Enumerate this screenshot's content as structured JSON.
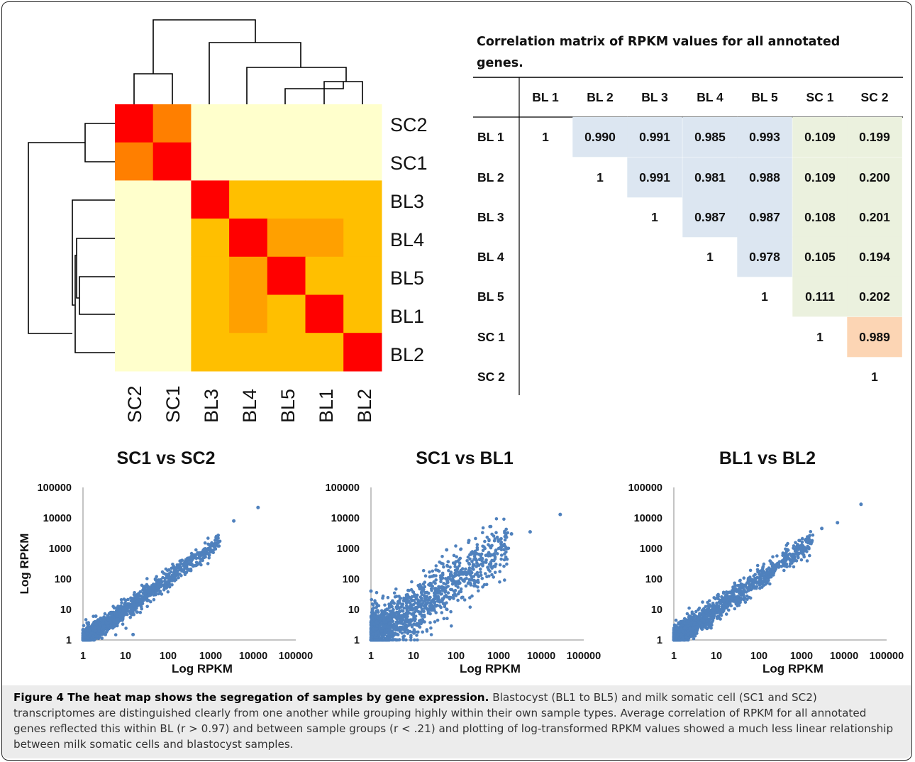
{
  "heatmap": {
    "rows": [
      "SC2",
      "SC1",
      "BL3",
      "BL4",
      "BL5",
      "BL1",
      "BL2"
    ],
    "cols": [
      "SC2",
      "SC1",
      "BL3",
      "BL4",
      "BL5",
      "BL1",
      "BL2"
    ],
    "colors": {
      "c1": "#ff0000",
      "c2": "#ff7f00",
      "c3": "#ffa000",
      "c4": "#ffbf00",
      "c5": "#ffffcc"
    },
    "cells": [
      [
        "c1",
        "c2",
        "c5",
        "c5",
        "c5",
        "c5",
        "c5"
      ],
      [
        "c2",
        "c1",
        "c5",
        "c5",
        "c5",
        "c5",
        "c5"
      ],
      [
        "c5",
        "c5",
        "c1",
        "c4",
        "c4",
        "c4",
        "c4"
      ],
      [
        "c5",
        "c5",
        "c4",
        "c1",
        "c3",
        "c3",
        "c4"
      ],
      [
        "c5",
        "c5",
        "c4",
        "c3",
        "c1",
        "c4",
        "c4"
      ],
      [
        "c5",
        "c5",
        "c4",
        "c3",
        "c4",
        "c1",
        "c4"
      ],
      [
        "c5",
        "c5",
        "c4",
        "c4",
        "c4",
        "c4",
        "c1"
      ]
    ]
  },
  "table": {
    "title_line1": "Correlation matrix of RPKM values for all annotated",
    "title_line2": "genes.",
    "headers": [
      "BL 1",
      "BL 2",
      "BL 3",
      "BL 4",
      "BL 5",
      "SC 1",
      "SC 2"
    ],
    "rows": [
      {
        "label": "BL 1",
        "cells": [
          "1",
          "0.990",
          "0.991",
          "0.985",
          "0.993",
          "0.109",
          "0.199"
        ]
      },
      {
        "label": "BL 2",
        "cells": [
          "",
          "1",
          "0.991",
          "0.981",
          "0.988",
          "0.109",
          "0.200"
        ]
      },
      {
        "label": "BL 3",
        "cells": [
          "",
          "",
          "1",
          "0.987",
          "0.987",
          "0.108",
          "0.201"
        ]
      },
      {
        "label": "BL 4",
        "cells": [
          "",
          "",
          "",
          "1",
          "0.978",
          "0.105",
          "0.194"
        ]
      },
      {
        "label": "BL 5",
        "cells": [
          "",
          "",
          "",
          "",
          "1",
          "0.111",
          "0.202"
        ]
      },
      {
        "label": "SC 1",
        "cells": [
          "",
          "",
          "",
          "",
          "",
          "1",
          "0.989"
        ]
      },
      {
        "label": "SC 2",
        "cells": [
          "",
          "",
          "",
          "",
          "",
          "",
          "1"
        ]
      }
    ],
    "colors": {
      "blue": "#dce6f1",
      "green": "#ebf1de",
      "orange": "#fcd5b4"
    }
  },
  "scatter_axis": {
    "ticks": [
      "1",
      "10",
      "100",
      "1000",
      "10000",
      "100000"
    ],
    "xlabel": "Log RPKM",
    "ylabel": "Log RPKM",
    "point_color": "#4f81bd"
  },
  "chart_data": [
    {
      "type": "heatmap",
      "rows": [
        "SC2",
        "SC1",
        "BL3",
        "BL4",
        "BL5",
        "BL1",
        "BL2"
      ],
      "cols": [
        "SC2",
        "SC1",
        "BL3",
        "BL4",
        "BL5",
        "BL1",
        "BL2"
      ]
    },
    {
      "type": "table",
      "title": "Correlation matrix of RPKM values for all annotated genes."
    },
    {
      "type": "scatter",
      "title": "SC1 vs SC2",
      "xlabel": "Log RPKM",
      "ylabel": "Log RPKM",
      "xscale": "log",
      "yscale": "log",
      "xlim": [
        1,
        100000
      ],
      "ylim": [
        1,
        100000
      ],
      "spread": 0.16,
      "outliers": [
        [
          13000,
          22000
        ],
        [
          3500,
          8000
        ],
        [
          2,
          6
        ],
        [
          15,
          1.5
        ]
      ]
    },
    {
      "type": "scatter",
      "title": "SC1 vs BL1",
      "xlabel": "Log RPKM",
      "ylabel": "",
      "xscale": "log",
      "yscale": "log",
      "xlim": [
        1,
        100000
      ],
      "ylim": [
        1,
        100000
      ],
      "spread": 0.45,
      "outliers": [
        [
          28000,
          13000
        ],
        [
          5500,
          3500
        ],
        [
          2000,
          3000
        ],
        [
          60,
          900
        ],
        [
          200,
          1800
        ],
        [
          1,
          40
        ]
      ]
    },
    {
      "type": "scatter",
      "title": "BL1 vs BL2",
      "xlabel": "Log RPKM",
      "ylabel": "",
      "xscale": "log",
      "yscale": "log",
      "xlim": [
        1,
        100000
      ],
      "ylim": [
        1,
        100000
      ],
      "spread": 0.19,
      "outliers": [
        [
          25000,
          28000
        ],
        [
          7000,
          7000
        ],
        [
          3000,
          4500
        ]
      ]
    }
  ],
  "caption": {
    "bold": "Figure 4 The heat map shows the segregation of samples by gene expression.",
    "text": " Blastocyst (BL1 to BL5) and milk somatic cell (SC1 and SC2) transcriptomes are distinguished clearly from one another while grouping highly within their own sample types. Average correlation of RPKM for all annotated genes reflected this within BL (r > 0.97) and between sample groups (r < .21) and plotting of log-transformed RPKM values showed a much less linear relationship between milk somatic cells and blastocyst samples."
  }
}
